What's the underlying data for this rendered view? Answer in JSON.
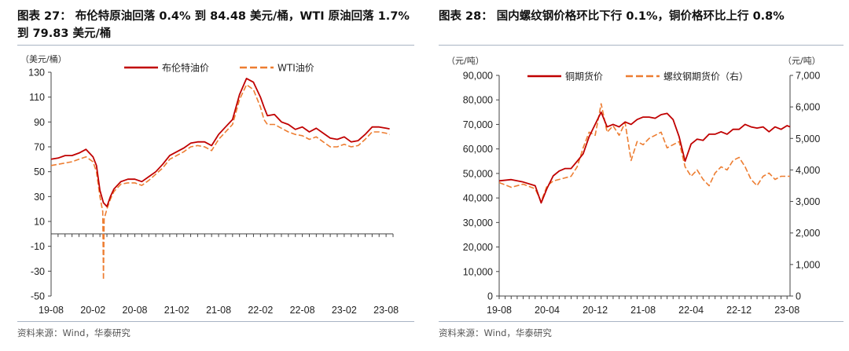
{
  "left": {
    "title": "图表 27：  布伦特原油回落 0.4% 到 84.48 美元/桶，WTI 原油回落 1.7%到 79.83 美元/桶",
    "source": "资料来源：Wind，华泰研究",
    "chart_data": {
      "type": "line",
      "ylabel": "（美元/桶）",
      "ylim": [
        -50,
        130
      ],
      "yticks": [
        -50,
        -30,
        -10,
        10,
        30,
        50,
        70,
        90,
        110,
        130
      ],
      "xtick_labels": [
        "19-08",
        "20-02",
        "20-08",
        "21-02",
        "21-08",
        "22-02",
        "22-08",
        "23-02",
        "23-08"
      ],
      "xlim": [
        0,
        49
      ],
      "grid": false,
      "legend": "top",
      "series": [
        {
          "name": "布伦特油价",
          "color": "#c00000",
          "style": "solid",
          "x": [
            0,
            1,
            2,
            3,
            4,
            5,
            6,
            6.5,
            7,
            7.5,
            8,
            8.5,
            9,
            10,
            11,
            12,
            13,
            14,
            15,
            16,
            17,
            18,
            19,
            20,
            21,
            22,
            23,
            24,
            25,
            26,
            27,
            28,
            29,
            30,
            30.5,
            31,
            32,
            33,
            34,
            35,
            36,
            37,
            38,
            39,
            40,
            41,
            42,
            43,
            44,
            45,
            46,
            47,
            48,
            48.5
          ],
          "values": [
            60,
            61,
            63,
            63,
            65,
            68,
            62,
            55,
            35,
            25,
            22,
            30,
            36,
            42,
            44,
            44,
            42,
            46,
            50,
            56,
            63,
            66,
            69,
            73,
            74,
            74,
            71,
            80,
            86,
            92,
            112,
            125,
            122,
            110,
            102,
            95,
            96,
            90,
            88,
            84,
            86,
            82,
            85,
            81,
            77,
            76,
            78,
            74,
            75,
            80,
            86,
            86,
            85,
            84.48
          ]
        },
        {
          "name": "WTI油价",
          "color": "#ed7d31",
          "style": "dashed",
          "x": [
            0,
            1,
            2,
            3,
            4,
            5,
            6,
            6.5,
            7,
            7.4,
            7.5,
            7.6,
            8,
            8.5,
            9,
            10,
            11,
            12,
            13,
            14,
            15,
            16,
            17,
            18,
            19,
            20,
            21,
            22,
            23,
            24,
            25,
            26,
            27,
            28,
            29,
            30,
            30.5,
            31,
            32,
            33,
            34,
            35,
            36,
            37,
            38,
            39,
            40,
            41,
            42,
            43,
            44,
            45,
            46,
            47,
            48,
            48.5
          ],
          "values": [
            55,
            56,
            57,
            58,
            60,
            62,
            58,
            50,
            30,
            18,
            -37,
            12,
            20,
            28,
            34,
            40,
            41,
            41,
            39,
            43,
            48,
            53,
            60,
            63,
            66,
            70,
            71,
            70,
            67,
            76,
            82,
            88,
            108,
            120,
            116,
            102,
            92,
            88,
            88,
            85,
            82,
            80,
            79,
            76,
            78,
            74,
            70,
            70,
            72,
            70,
            71,
            76,
            82,
            82,
            81,
            79.83
          ]
        }
      ]
    }
  },
  "right": {
    "title": "图表 28：  国内螺纹钢价格环比下行 0.1%，铜价格环比上行 0.8%",
    "source": "资料来源：Wind，华泰研究",
    "chart_data": {
      "type": "line",
      "ylabel_left": "（元/吨）",
      "ylabel_right": "（元/吨）",
      "ylim_left": [
        0,
        90000
      ],
      "ylim_right": [
        0,
        7000
      ],
      "yticks_left": [
        0,
        10000,
        20000,
        30000,
        40000,
        50000,
        60000,
        70000,
        80000,
        90000
      ],
      "ytick_labels_left": [
        "0",
        "10,000",
        "20,000",
        "30,000",
        "40,000",
        "50,000",
        "60,000",
        "70,000",
        "80,000",
        "90,000"
      ],
      "yticks_right": [
        0,
        1000,
        2000,
        3000,
        4000,
        5000,
        6000,
        7000
      ],
      "ytick_labels_right": [
        "0",
        "1,000",
        "2,000",
        "3,000",
        "4,000",
        "5,000",
        "6,000",
        "7,000"
      ],
      "xtick_labels": [
        "19-08",
        "20-04",
        "20-12",
        "21-08",
        "22-04",
        "22-12",
        "23-08"
      ],
      "xlim": [
        0,
        48.5
      ],
      "grid": false,
      "legend": "top",
      "series": [
        {
          "name": "铜期货价",
          "axis": "left",
          "color": "#c00000",
          "style": "solid",
          "x": [
            0,
            2,
            4,
            6,
            7,
            8,
            9,
            10,
            11,
            12,
            13,
            14,
            15,
            16,
            17,
            18,
            19,
            20,
            21,
            22,
            23,
            24,
            25,
            26,
            27,
            28,
            29,
            30,
            31,
            32,
            33,
            34,
            35,
            36,
            37,
            38,
            39,
            40,
            41,
            42,
            43,
            44,
            45,
            46,
            47,
            48,
            48.5
          ],
          "values": [
            47000,
            47500,
            46500,
            45000,
            38000,
            44000,
            49000,
            51000,
            52000,
            52000,
            55000,
            58000,
            65000,
            70000,
            75000,
            69000,
            70000,
            69000,
            71000,
            70000,
            72000,
            73000,
            73000,
            72500,
            74000,
            74500,
            72000,
            65000,
            55000,
            62000,
            64000,
            63500,
            66000,
            66000,
            67000,
            66000,
            68000,
            68000,
            70000,
            69000,
            68500,
            69000,
            67000,
            69000,
            68000,
            69500,
            69000
          ]
        },
        {
          "name": "螺纹钢期货价（右）",
          "axis": "right",
          "color": "#ed7d31",
          "style": "dashed",
          "x": [
            0,
            2,
            4,
            6,
            7,
            8,
            9,
            10,
            11,
            12,
            13,
            14,
            15,
            16,
            17,
            18,
            19,
            20,
            21,
            22,
            23,
            24,
            25,
            26,
            27,
            28,
            29,
            30,
            31,
            32,
            33,
            34,
            35,
            36,
            37,
            38,
            39,
            40,
            41,
            42,
            43,
            44,
            45,
            46,
            47,
            48,
            48.5
          ],
          "values": [
            3600,
            3450,
            3550,
            3400,
            3000,
            3500,
            3650,
            3700,
            3750,
            3800,
            4100,
            4700,
            5200,
            5100,
            6100,
            5200,
            5400,
            5100,
            5500,
            4300,
            4900,
            4800,
            5000,
            5100,
            5200,
            4700,
            4800,
            4900,
            4100,
            3800,
            4000,
            3700,
            3500,
            3900,
            4100,
            4000,
            4300,
            4400,
            4100,
            3700,
            3500,
            3800,
            3900,
            3700,
            3800,
            3800,
            3800
          ]
        }
      ]
    }
  }
}
